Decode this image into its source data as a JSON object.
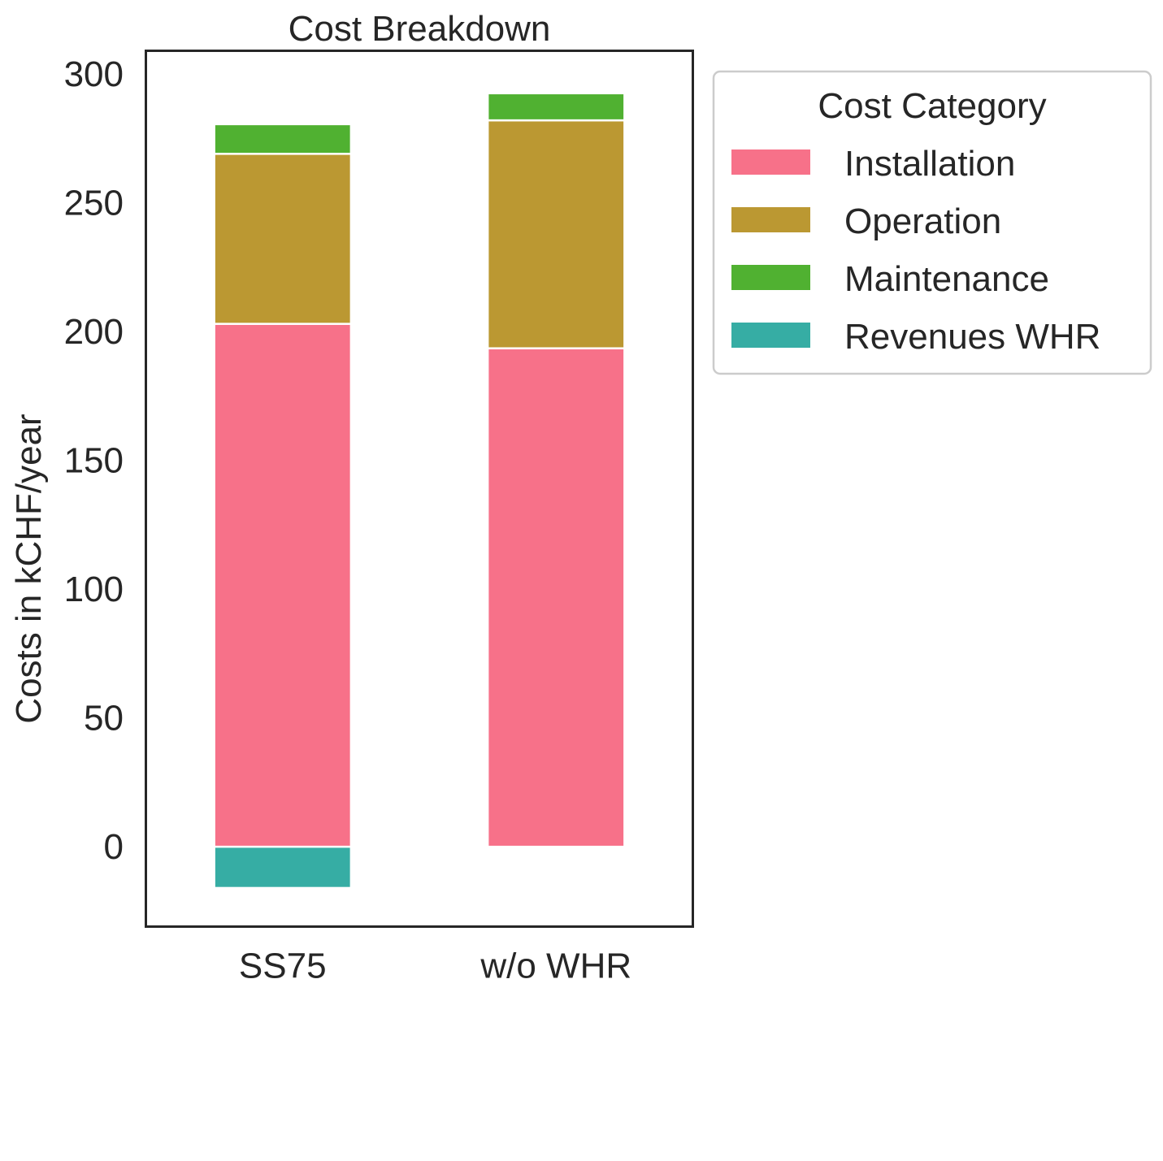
{
  "chart_data": {
    "type": "bar",
    "stacked": true,
    "title": "Cost Breakdown",
    "xlabel": "",
    "ylabel": "Costs in kCHF/year",
    "categories": [
      "SS75",
      "w/o WHR"
    ],
    "ylim": [
      -31,
      309
    ],
    "yticks": [
      0,
      50,
      100,
      150,
      200,
      250,
      300
    ],
    "grid": false,
    "legend": {
      "title": "Cost Category",
      "placement": "outside-top-right"
    },
    "series": [
      {
        "name": "Installation",
        "color": "#f77189",
        "values": [
          203,
          193.5
        ]
      },
      {
        "name": "Operation",
        "color": "#bb9832",
        "values": [
          66,
          88.5
        ]
      },
      {
        "name": "Maintenance",
        "color": "#50b131",
        "values": [
          11.5,
          10.5
        ]
      },
      {
        "name": "Revenues WHR",
        "color": "#36ada4",
        "values": [
          -16,
          0
        ]
      }
    ]
  }
}
